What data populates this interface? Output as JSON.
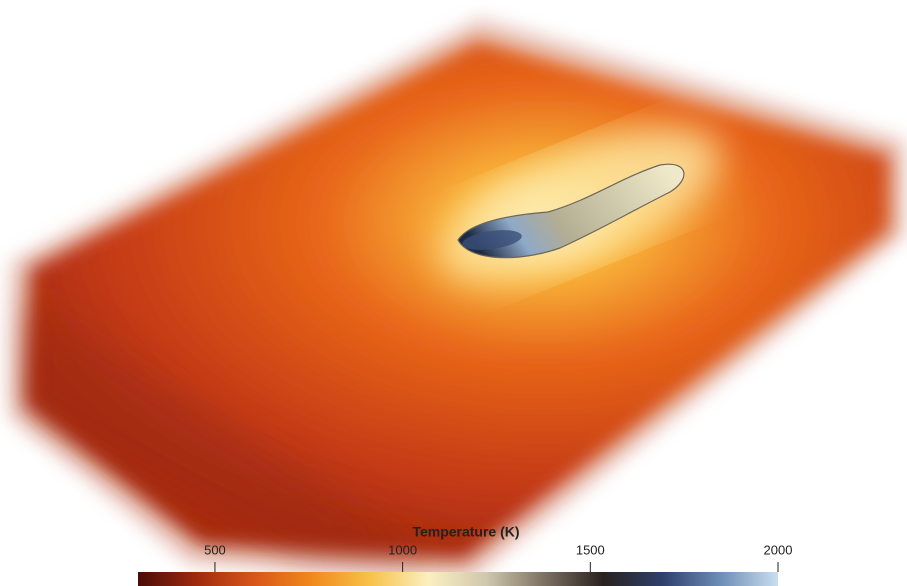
{
  "colorbar": {
    "title": "Temperature (K)",
    "lim": [
      295,
      2000
    ],
    "ticks": [
      500,
      1000,
      1500,
      2000
    ],
    "colors": [
      "#4a0c08",
      "#9e2a0e",
      "#d9561a",
      "#f08a1c",
      "#f8c24a",
      "#fbefc0",
      "#cfc7ad",
      "#7a6f60",
      "#2a211f",
      "#2d3f6a",
      "#6d8cb6",
      "#c9def0"
    ]
  }
}
